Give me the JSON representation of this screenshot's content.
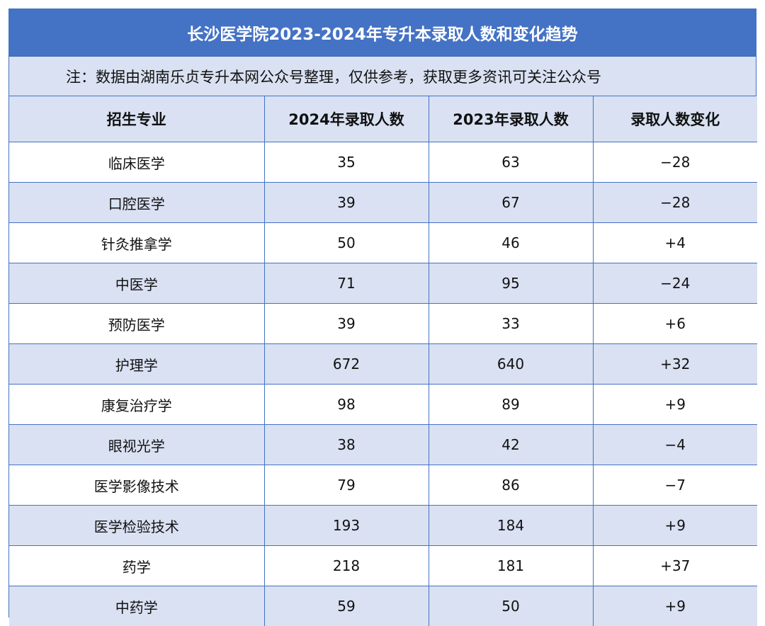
{
  "title": "长沙医学院2023-2024年专升本录取人数和变化趋势",
  "note": "注：数据由湖南乐贞专升本网公众号整理，仅供参考，获取更多资讯可关注公众号",
  "colors": {
    "header_blue": "#4472c4",
    "band_light": "#d9e1f2"
  },
  "columns": [
    "招生专业",
    "2024年录取人数",
    "2023年录取人数",
    "录取人数变化"
  ],
  "rows": [
    [
      "临床医学",
      "35",
      "63",
      "−28"
    ],
    [
      "口腔医学",
      "39",
      "67",
      "−28"
    ],
    [
      "针灸推拿学",
      "50",
      "46",
      "+4"
    ],
    [
      "中医学",
      "71",
      "95",
      "−24"
    ],
    [
      "预防医学",
      "39",
      "33",
      "+6"
    ],
    [
      "护理学",
      "672",
      "640",
      "+32"
    ],
    [
      "康复治疗学",
      "98",
      "89",
      "+9"
    ],
    [
      "眼视光学",
      "38",
      "42",
      "−4"
    ],
    [
      "医学影像技术",
      "79",
      "86",
      "−7"
    ],
    [
      "医学检验技术",
      "193",
      "184",
      "+9"
    ],
    [
      "药学",
      "218",
      "181",
      "+37"
    ],
    [
      "中药学",
      "59",
      "50",
      "+9"
    ]
  ]
}
